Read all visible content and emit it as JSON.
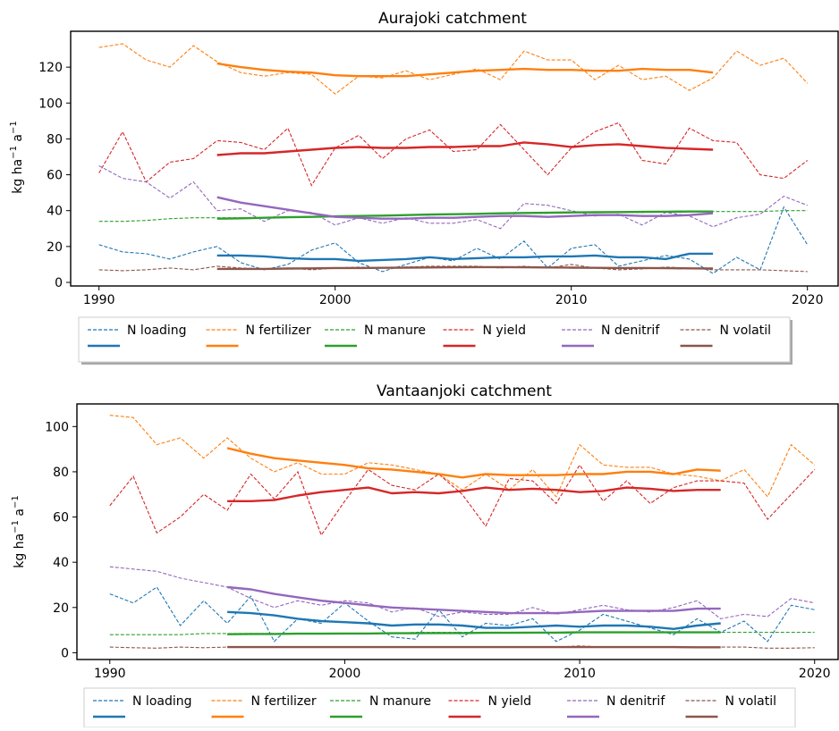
{
  "colors": {
    "loading": "#1f77b4",
    "fertilizer": "#ff7f0e",
    "manure": "#2ca02c",
    "yield": "#d62728",
    "denitrif": "#9467bd",
    "volatil": "#8c564b"
  },
  "legend_labels": [
    "N loading",
    "N fertilizer",
    "N manure",
    "N yield",
    "N denitrif",
    "N volatil"
  ],
  "chart_data": [
    {
      "type": "line",
      "title": "Aurajoki catchment",
      "xlabel": "",
      "ylabel": "kg ha⁻¹ a⁻¹",
      "xlim": [
        1988.8,
        2021.3
      ],
      "ylim": [
        -2,
        140
      ],
      "xticks": [
        1990,
        2000,
        2010,
        2020
      ],
      "yticks": [
        0,
        20,
        40,
        60,
        80,
        100,
        120
      ],
      "x": [
        1990,
        1991,
        1992,
        1993,
        1994,
        1995,
        1996,
        1997,
        1998,
        1999,
        2000,
        2001,
        2002,
        2003,
        2004,
        2005,
        2006,
        2007,
        2008,
        2009,
        2010,
        2011,
        2012,
        2013,
        2014,
        2015,
        2016,
        2017,
        2018,
        2019,
        2020
      ],
      "trend_x": [
        1995,
        1996,
        1997,
        1998,
        1999,
        2000,
        2001,
        2002,
        2003,
        2004,
        2005,
        2006,
        2007,
        2008,
        2009,
        2010,
        2011,
        2012,
        2013,
        2014,
        2015,
        2016
      ],
      "legend_position": "below",
      "series": [
        {
          "name": "N loading",
          "key": "loading",
          "annual": [
            21,
            17,
            16,
            13,
            17,
            20,
            11,
            7,
            10,
            18,
            22,
            11,
            6,
            10,
            14,
            12,
            19,
            13,
            23,
            8,
            19,
            21,
            9,
            12,
            15,
            13,
            5,
            14,
            7,
            42,
            21
          ],
          "trend": [
            15,
            15,
            14.5,
            13.5,
            13,
            13,
            12,
            12.5,
            13,
            14,
            13,
            13.5,
            14,
            14,
            14.5,
            14.5,
            15,
            14,
            14,
            13,
            16,
            16
          ]
        },
        {
          "name": "N fertilizer",
          "key": "fertilizer",
          "annual": [
            131,
            133,
            124,
            120,
            132,
            123,
            117,
            115,
            117,
            116,
            105,
            115,
            114,
            118,
            113,
            116,
            119,
            113,
            129,
            124,
            124,
            113,
            121,
            113,
            115,
            107,
            114,
            129,
            121,
            125,
            111
          ],
          "trend": [
            122,
            120,
            118.5,
            117.5,
            117,
            115.5,
            115,
            115,
            115,
            116,
            117,
            118,
            118.5,
            119,
            118.5,
            118.5,
            118,
            118,
            119,
            118.5,
            118.5,
            117
          ]
        },
        {
          "name": "N manure",
          "key": "manure",
          "annual": [
            34,
            34,
            34.5,
            35.5,
            36,
            36,
            36,
            36,
            36.5,
            36.5,
            37,
            37,
            37,
            37.5,
            37.5,
            38,
            38,
            38.5,
            38.5,
            38.5,
            39,
            39,
            39,
            39,
            39.5,
            39.5,
            39.5,
            39.5,
            39.5,
            40,
            40
          ],
          "trend": [
            35.5,
            35.7,
            36,
            36.3,
            36.5,
            36.8,
            37,
            37.2,
            37.5,
            37.8,
            38,
            38.2,
            38.5,
            38.7,
            38.8,
            39,
            39.1,
            39.2,
            39.3,
            39.4,
            39.5,
            39.5
          ]
        },
        {
          "name": "N yield",
          "key": "yield",
          "annual": [
            61,
            84,
            56,
            67,
            69,
            79,
            78,
            74,
            86,
            54,
            75,
            82,
            69,
            80,
            85,
            73,
            74,
            88,
            74,
            60,
            75,
            84,
            89,
            68,
            66,
            86,
            79,
            78,
            60,
            58,
            68
          ],
          "trend": [
            71,
            72,
            72,
            73,
            74,
            75,
            75.5,
            75,
            75,
            75.5,
            75.5,
            76,
            76,
            78,
            77,
            75.5,
            76.5,
            77,
            76,
            75,
            74.5,
            74
          ]
        },
        {
          "name": "N denitrif",
          "key": "denitrif",
          "annual": [
            65,
            58,
            56,
            47,
            56,
            40,
            41,
            34,
            40,
            39,
            32,
            36,
            33,
            36,
            33,
            33,
            35,
            30,
            44,
            43,
            40,
            37,
            38,
            32,
            39,
            37,
            31,
            36,
            38,
            48,
            43
          ],
          "trend": [
            47.5,
            44.5,
            42.5,
            40.5,
            38.5,
            36.5,
            36,
            35.5,
            35.5,
            36,
            36,
            36.5,
            37,
            37,
            36.5,
            37,
            37.5,
            37.5,
            37,
            37,
            37.5,
            38.5
          ]
        },
        {
          "name": "N volatil",
          "key": "volatil",
          "annual": [
            7,
            6.5,
            7,
            8,
            7,
            9,
            8,
            7.5,
            8,
            7,
            8,
            8.5,
            8,
            8.5,
            9,
            9,
            9,
            8,
            9,
            8,
            10,
            8,
            7,
            7.5,
            8.5,
            8,
            7,
            7,
            7,
            6.5,
            6
          ],
          "trend": [
            7.5,
            7.5,
            7.5,
            7.7,
            7.8,
            8,
            8,
            8.1,
            8.2,
            8.3,
            8.4,
            8.5,
            8.5,
            8.4,
            8.3,
            8.2,
            8.1,
            8,
            8,
            7.9,
            7.8,
            7.7
          ]
        }
      ]
    },
    {
      "type": "line",
      "title": "Vantaanjoki catchment",
      "xlabel": "",
      "ylabel": "kg ha⁻¹ a⁻¹",
      "xlim": [
        1988.6,
        2021
      ],
      "ylim": [
        -3,
        110
      ],
      "xticks": [
        1990,
        2000,
        2010,
        2020
      ],
      "yticks": [
        0,
        20,
        40,
        60,
        80,
        100
      ],
      "x": [
        1990,
        1991,
        1992,
        1993,
        1994,
        1995,
        1996,
        1997,
        1998,
        1999,
        2000,
        2001,
        2002,
        2003,
        2004,
        2005,
        2006,
        2007,
        2008,
        2009,
        2010,
        2011,
        2012,
        2013,
        2014,
        2015,
        2016,
        2017,
        2018,
        2019,
        2020
      ],
      "trend_x": [
        1995,
        1996,
        1997,
        1998,
        1999,
        2000,
        2001,
        2002,
        2003,
        2004,
        2005,
        2006,
        2007,
        2008,
        2009,
        2010,
        2011,
        2012,
        2013,
        2014,
        2015,
        2016
      ],
      "legend_position": "below",
      "series": [
        {
          "name": "N loading",
          "key": "loading",
          "annual": [
            26,
            22,
            29,
            12,
            23,
            13,
            25,
            5,
            15,
            13,
            22,
            14,
            7,
            6,
            19,
            7,
            13,
            12,
            15,
            5,
            10,
            17,
            14,
            11,
            8,
            15,
            9,
            14,
            5,
            21,
            19
          ],
          "trend": [
            18,
            17.5,
            16.5,
            15,
            14,
            13.5,
            13,
            12,
            12.5,
            12.5,
            12,
            11,
            11,
            11.5,
            12,
            11.5,
            12,
            12,
            11.5,
            10.5,
            12,
            13
          ]
        },
        {
          "name": "N fertilizer",
          "key": "fertilizer",
          "annual": [
            105,
            104,
            92,
            95,
            86,
            95,
            86,
            80,
            84,
            79,
            79,
            84,
            83,
            81,
            79,
            72,
            79,
            72,
            81,
            69,
            92,
            83,
            82,
            82,
            79,
            78,
            76,
            81,
            69,
            92,
            83
          ],
          "trend": [
            90.5,
            88,
            86,
            85,
            84,
            83,
            81.5,
            81,
            80,
            79,
            77.5,
            79,
            78.5,
            78.5,
            78.5,
            79,
            79,
            80,
            80,
            79,
            81,
            80.5
          ]
        },
        {
          "name": "N manure",
          "key": "manure",
          "annual": [
            8,
            8,
            8,
            8,
            8.5,
            8.5,
            8.5,
            8.5,
            8.5,
            8.5,
            8.5,
            8.5,
            8.5,
            9,
            9,
            9,
            9,
            9,
            9,
            9,
            9,
            9,
            9,
            9,
            9,
            9,
            9,
            9,
            9,
            9,
            9
          ],
          "trend": [
            8.2,
            8.3,
            8.3,
            8.4,
            8.4,
            8.5,
            8.5,
            8.6,
            8.6,
            8.7,
            8.7,
            8.8,
            8.8,
            8.9,
            8.9,
            9,
            9,
            9,
            9,
            9,
            9,
            9
          ]
        },
        {
          "name": "N yield",
          "key": "yield",
          "annual": [
            65,
            78,
            53,
            60,
            70,
            63,
            79,
            68,
            80,
            52,
            67,
            81,
            74,
            72,
            79,
            70,
            56,
            77,
            76,
            66,
            83,
            67,
            76,
            66,
            73,
            76,
            76,
            75,
            59,
            70,
            81
          ],
          "trend": [
            67,
            67,
            67.5,
            69.5,
            71,
            72,
            73,
            70.5,
            71,
            70.5,
            71.5,
            73,
            72,
            72.5,
            72,
            71,
            71.5,
            73,
            72.5,
            71.5,
            72,
            72
          ]
        },
        {
          "name": "N denitrif",
          "key": "denitrif",
          "annual": [
            38,
            37,
            36,
            33,
            31,
            29,
            24,
            20,
            23,
            21,
            23,
            22,
            18,
            20,
            16,
            18,
            17,
            17,
            20,
            17,
            19,
            21,
            19,
            18,
            20,
            23,
            15,
            17,
            16,
            24,
            22
          ],
          "trend": [
            29,
            28,
            26,
            24.5,
            23,
            22,
            21,
            20,
            19.5,
            19,
            18.5,
            18,
            17.5,
            17.5,
            17.5,
            18,
            18.5,
            18.5,
            18.5,
            18.5,
            19.5,
            19.5
          ]
        },
        {
          "name": "N volatil",
          "key": "volatil",
          "annual": [
            2.5,
            2.2,
            2,
            2.5,
            2.2,
            2.5,
            2.5,
            2.5,
            2.5,
            2.5,
            2.5,
            2.7,
            2.7,
            2.7,
            2.5,
            2.5,
            2.5,
            2.5,
            2.5,
            2.5,
            3,
            2.5,
            2.5,
            2.5,
            2.5,
            2.5,
            2.5,
            2.5,
            2,
            2,
            2.2
          ],
          "trend": [
            2.5,
            2.5,
            2.5,
            2.5,
            2.5,
            2.5,
            2.5,
            2.5,
            2.5,
            2.5,
            2.5,
            2.5,
            2.5,
            2.5,
            2.5,
            2.5,
            2.5,
            2.5,
            2.5,
            2.5,
            2.4,
            2.4
          ]
        }
      ]
    }
  ]
}
